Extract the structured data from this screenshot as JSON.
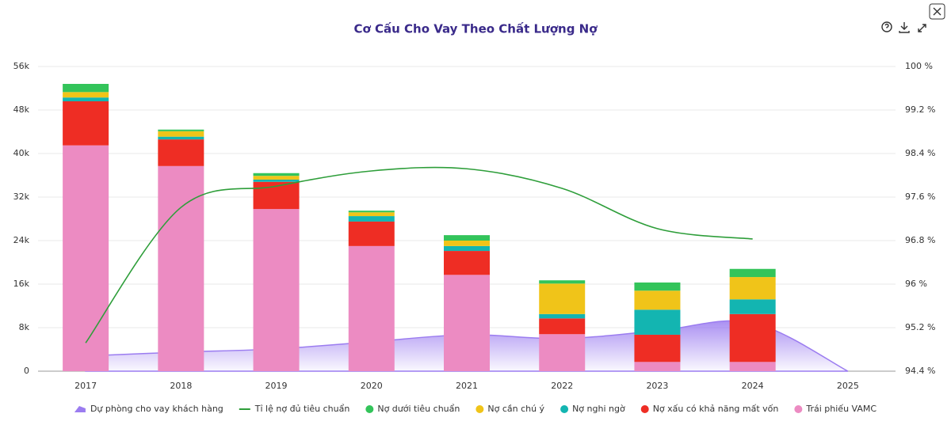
{
  "chart_data": {
    "type": "bar",
    "title": "Cơ Cấu Cho Vay Theo Chất Lượng Nợ",
    "categories": [
      "2017",
      "2018",
      "2019",
      "2020",
      "2021",
      "2022",
      "2023",
      "2024",
      "2025"
    ],
    "series": [
      {
        "name": "Dự phòng cho vay khách hàng",
        "type": "area",
        "color": "#9b7cf0",
        "values": [
          2800,
          3500,
          4100,
          5400,
          6700,
          6000,
          7400,
          8900,
          0
        ]
      },
      {
        "name": "Tỉ lệ nợ đủ tiêu chuẩn",
        "type": "line",
        "axis": "y2",
        "color": "#2e9e3a",
        "values": [
          94.92,
          97.41,
          97.8,
          98.08,
          98.12,
          97.76,
          97.02,
          96.83,
          null
        ]
      },
      {
        "name": "Nợ dưới tiêu chuẩn",
        "type": "bar",
        "color": "#33c45a",
        "values": [
          1500,
          300,
          500,
          300,
          1000,
          600,
          1500,
          1500,
          null
        ]
      },
      {
        "name": "Nợ cần chú ý",
        "type": "bar",
        "color": "#f0c419",
        "values": [
          1000,
          1000,
          700,
          700,
          1000,
          5600,
          3500,
          4100,
          null
        ]
      },
      {
        "name": "Nợ nghi ngờ",
        "type": "bar",
        "color": "#13b5b1",
        "values": [
          700,
          500,
          400,
          1000,
          900,
          800,
          4600,
          2700,
          null
        ]
      },
      {
        "name": "Nợ xấu có khả năng mất vốn",
        "type": "bar",
        "color": "#ee2d24",
        "values": [
          8100,
          4900,
          5000,
          4500,
          4400,
          2900,
          5000,
          8800,
          null
        ]
      },
      {
        "name": "Trái phiếu VAMC",
        "type": "bar",
        "color": "#ec8bc2",
        "values": [
          41500,
          37700,
          29800,
          23000,
          17700,
          6800,
          1700,
          1700,
          null
        ]
      }
    ],
    "ylim": [
      0,
      56000
    ],
    "yticks": [
      0,
      {
        "value": 8000,
        "label": "8k"
      },
      {
        "value": 16000,
        "label": "16k"
      },
      {
        "value": 24000,
        "label": "24k"
      },
      {
        "value": 32000,
        "label": "32k"
      },
      {
        "value": 40000,
        "label": "40k"
      },
      {
        "value": 48000,
        "label": "48k"
      },
      {
        "value": 56000,
        "label": "56k"
      }
    ],
    "y2lim": [
      94.4,
      100
    ],
    "y2ticks": [
      {
        "value": 94.4,
        "label": "94.4 %"
      },
      {
        "value": 95.2,
        "label": "95.2 %"
      },
      {
        "value": 96,
        "label": "96 %"
      },
      {
        "value": 96.8,
        "label": "96.8 %"
      },
      {
        "value": 97.6,
        "label": "97.6 %"
      },
      {
        "value": 98.4,
        "label": "98.4 %"
      },
      {
        "value": 99.2,
        "label": "99.2 %"
      },
      {
        "value": 100,
        "label": "100 %"
      }
    ],
    "grid": true
  }
}
